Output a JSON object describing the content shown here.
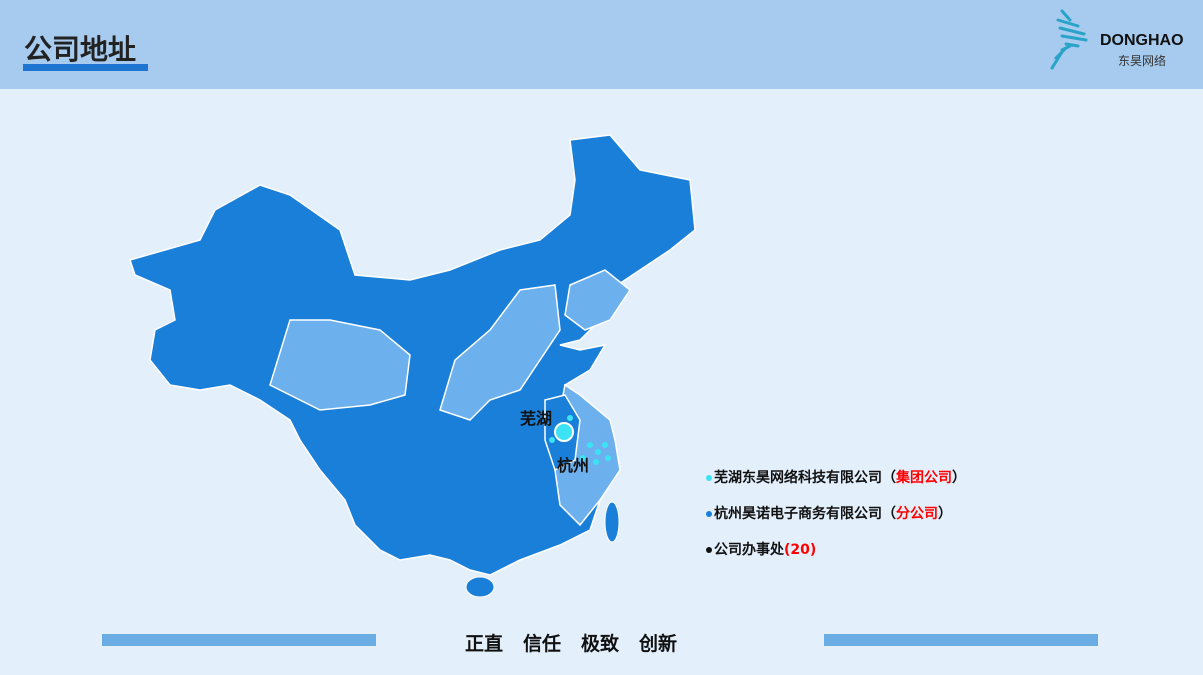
{
  "header": {
    "title": "公司地址"
  },
  "logo": {
    "en": "DONGHAO",
    "cn": "东昊网络"
  },
  "map": {
    "cities": [
      "芜湖",
      "杭州"
    ],
    "colors": {
      "dark": "#1a7fd9",
      "light": "#6cb1ee",
      "highlight": "#3be3f5"
    }
  },
  "legend": [
    {
      "name": "芜湖东昊网络科技有限公司",
      "open": "（",
      "tag": "集团公司",
      "close": "）",
      "dot": "#3be3f5"
    },
    {
      "name": "杭州昊诺电子商务有限公司",
      "open": "（",
      "tag": "分公司",
      "close": "）",
      "dot": "#1a7fd9"
    },
    {
      "name": "公司办事处",
      "open": "(",
      "tag": "20",
      "close": ")",
      "dot": "#111111"
    }
  ],
  "footer": {
    "values": [
      "正直",
      "信任",
      "极致",
      "创新"
    ]
  }
}
